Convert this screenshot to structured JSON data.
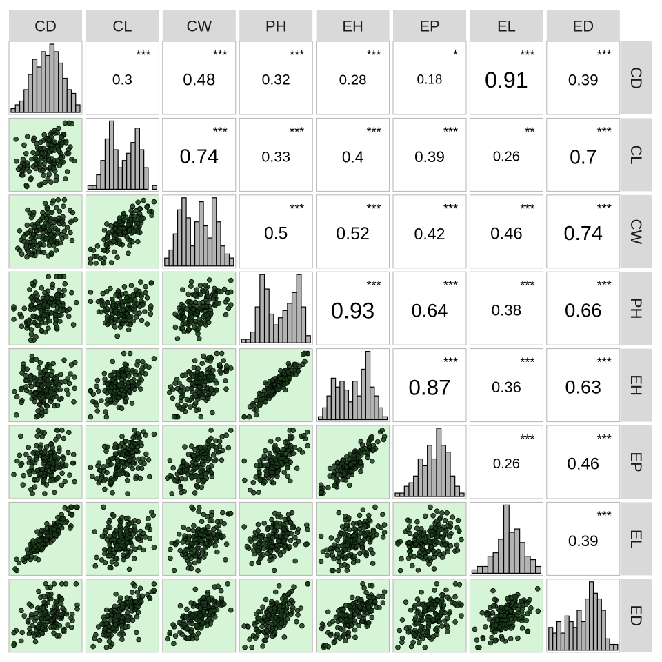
{
  "chart_data": {
    "type": "scatter",
    "variables": [
      "CD",
      "CL",
      "CW",
      "PH",
      "EH",
      "EP",
      "EL",
      "ED"
    ],
    "correlations": [
      {
        "row": "CD",
        "col": "CL",
        "r": "0.3",
        "sig": "***"
      },
      {
        "row": "CD",
        "col": "CW",
        "r": "0.48",
        "sig": "***"
      },
      {
        "row": "CD",
        "col": "PH",
        "r": "0.32",
        "sig": "***"
      },
      {
        "row": "CD",
        "col": "EH",
        "r": "0.28",
        "sig": "***"
      },
      {
        "row": "CD",
        "col": "EP",
        "r": "0.18",
        "sig": "*"
      },
      {
        "row": "CD",
        "col": "EL",
        "r": "0.91",
        "sig": "***"
      },
      {
        "row": "CD",
        "col": "ED",
        "r": "0.39",
        "sig": "***"
      },
      {
        "row": "CL",
        "col": "CW",
        "r": "0.74",
        "sig": "***"
      },
      {
        "row": "CL",
        "col": "PH",
        "r": "0.33",
        "sig": "***"
      },
      {
        "row": "CL",
        "col": "EH",
        "r": "0.4",
        "sig": "***"
      },
      {
        "row": "CL",
        "col": "EP",
        "r": "0.39",
        "sig": "***"
      },
      {
        "row": "CL",
        "col": "EL",
        "r": "0.26",
        "sig": "**"
      },
      {
        "row": "CL",
        "col": "ED",
        "r": "0.7",
        "sig": "***"
      },
      {
        "row": "CW",
        "col": "PH",
        "r": "0.5",
        "sig": "***"
      },
      {
        "row": "CW",
        "col": "EH",
        "r": "0.52",
        "sig": "***"
      },
      {
        "row": "CW",
        "col": "EP",
        "r": "0.42",
        "sig": "***"
      },
      {
        "row": "CW",
        "col": "EL",
        "r": "0.46",
        "sig": "***"
      },
      {
        "row": "CW",
        "col": "ED",
        "r": "0.74",
        "sig": "***"
      },
      {
        "row": "PH",
        "col": "EH",
        "r": "0.93",
        "sig": "***"
      },
      {
        "row": "PH",
        "col": "EP",
        "r": "0.64",
        "sig": "***"
      },
      {
        "row": "PH",
        "col": "EL",
        "r": "0.38",
        "sig": "***"
      },
      {
        "row": "PH",
        "col": "ED",
        "r": "0.66",
        "sig": "***"
      },
      {
        "row": "EH",
        "col": "EP",
        "r": "0.87",
        "sig": "***"
      },
      {
        "row": "EH",
        "col": "EL",
        "r": "0.36",
        "sig": "***"
      },
      {
        "row": "EH",
        "col": "ED",
        "r": "0.63",
        "sig": "***"
      },
      {
        "row": "EP",
        "col": "EL",
        "r": "0.26",
        "sig": "***"
      },
      {
        "row": "EP",
        "col": "ED",
        "r": "0.46",
        "sig": "***"
      },
      {
        "row": "EL",
        "col": "ED",
        "r": "0.39",
        "sig": "***"
      }
    ],
    "histograms": {
      "CD": [
        1,
        2,
        3,
        6,
        10,
        14,
        12,
        16,
        15,
        18,
        16,
        13,
        9,
        6,
        5,
        2
      ],
      "CL": [
        1,
        1,
        4,
        8,
        14,
        19,
        11,
        6,
        8,
        10,
        13,
        17,
        11,
        6,
        0,
        1
      ],
      "CW": [
        2,
        4,
        8,
        14,
        17,
        12,
        5,
        11,
        16,
        10,
        7,
        17,
        11,
        5,
        3,
        2
      ],
      "PH": [
        1,
        1,
        3,
        10,
        19,
        15,
        8,
        5,
        7,
        9,
        11,
        14,
        19,
        10,
        2
      ],
      "EH": [
        1,
        4,
        8,
        14,
        11,
        13,
        10,
        6,
        13,
        8,
        17,
        23,
        11,
        8,
        4,
        1
      ],
      "EP": [
        1,
        1,
        3,
        4,
        6,
        11,
        9,
        15,
        11,
        20,
        15,
        13,
        6,
        3,
        1
      ],
      "EL": [
        1,
        2,
        2,
        5,
        6,
        10,
        20,
        12,
        13,
        9,
        5,
        4,
        2
      ],
      "ED": [
        4,
        3,
        5,
        3,
        6,
        5,
        4,
        7,
        5,
        9,
        12,
        10,
        9,
        7,
        2,
        1,
        1
      ]
    },
    "scatter_style": {
      "panel_fill": "#d6f5d6",
      "point_fill": "#1a3a1a",
      "point_stroke": "#000000"
    },
    "panel_border": "#b4b4b4",
    "strip_fill": "#d9d9d9",
    "histogram_fill": "#b3b3b3",
    "grid": false,
    "legend": "none"
  }
}
